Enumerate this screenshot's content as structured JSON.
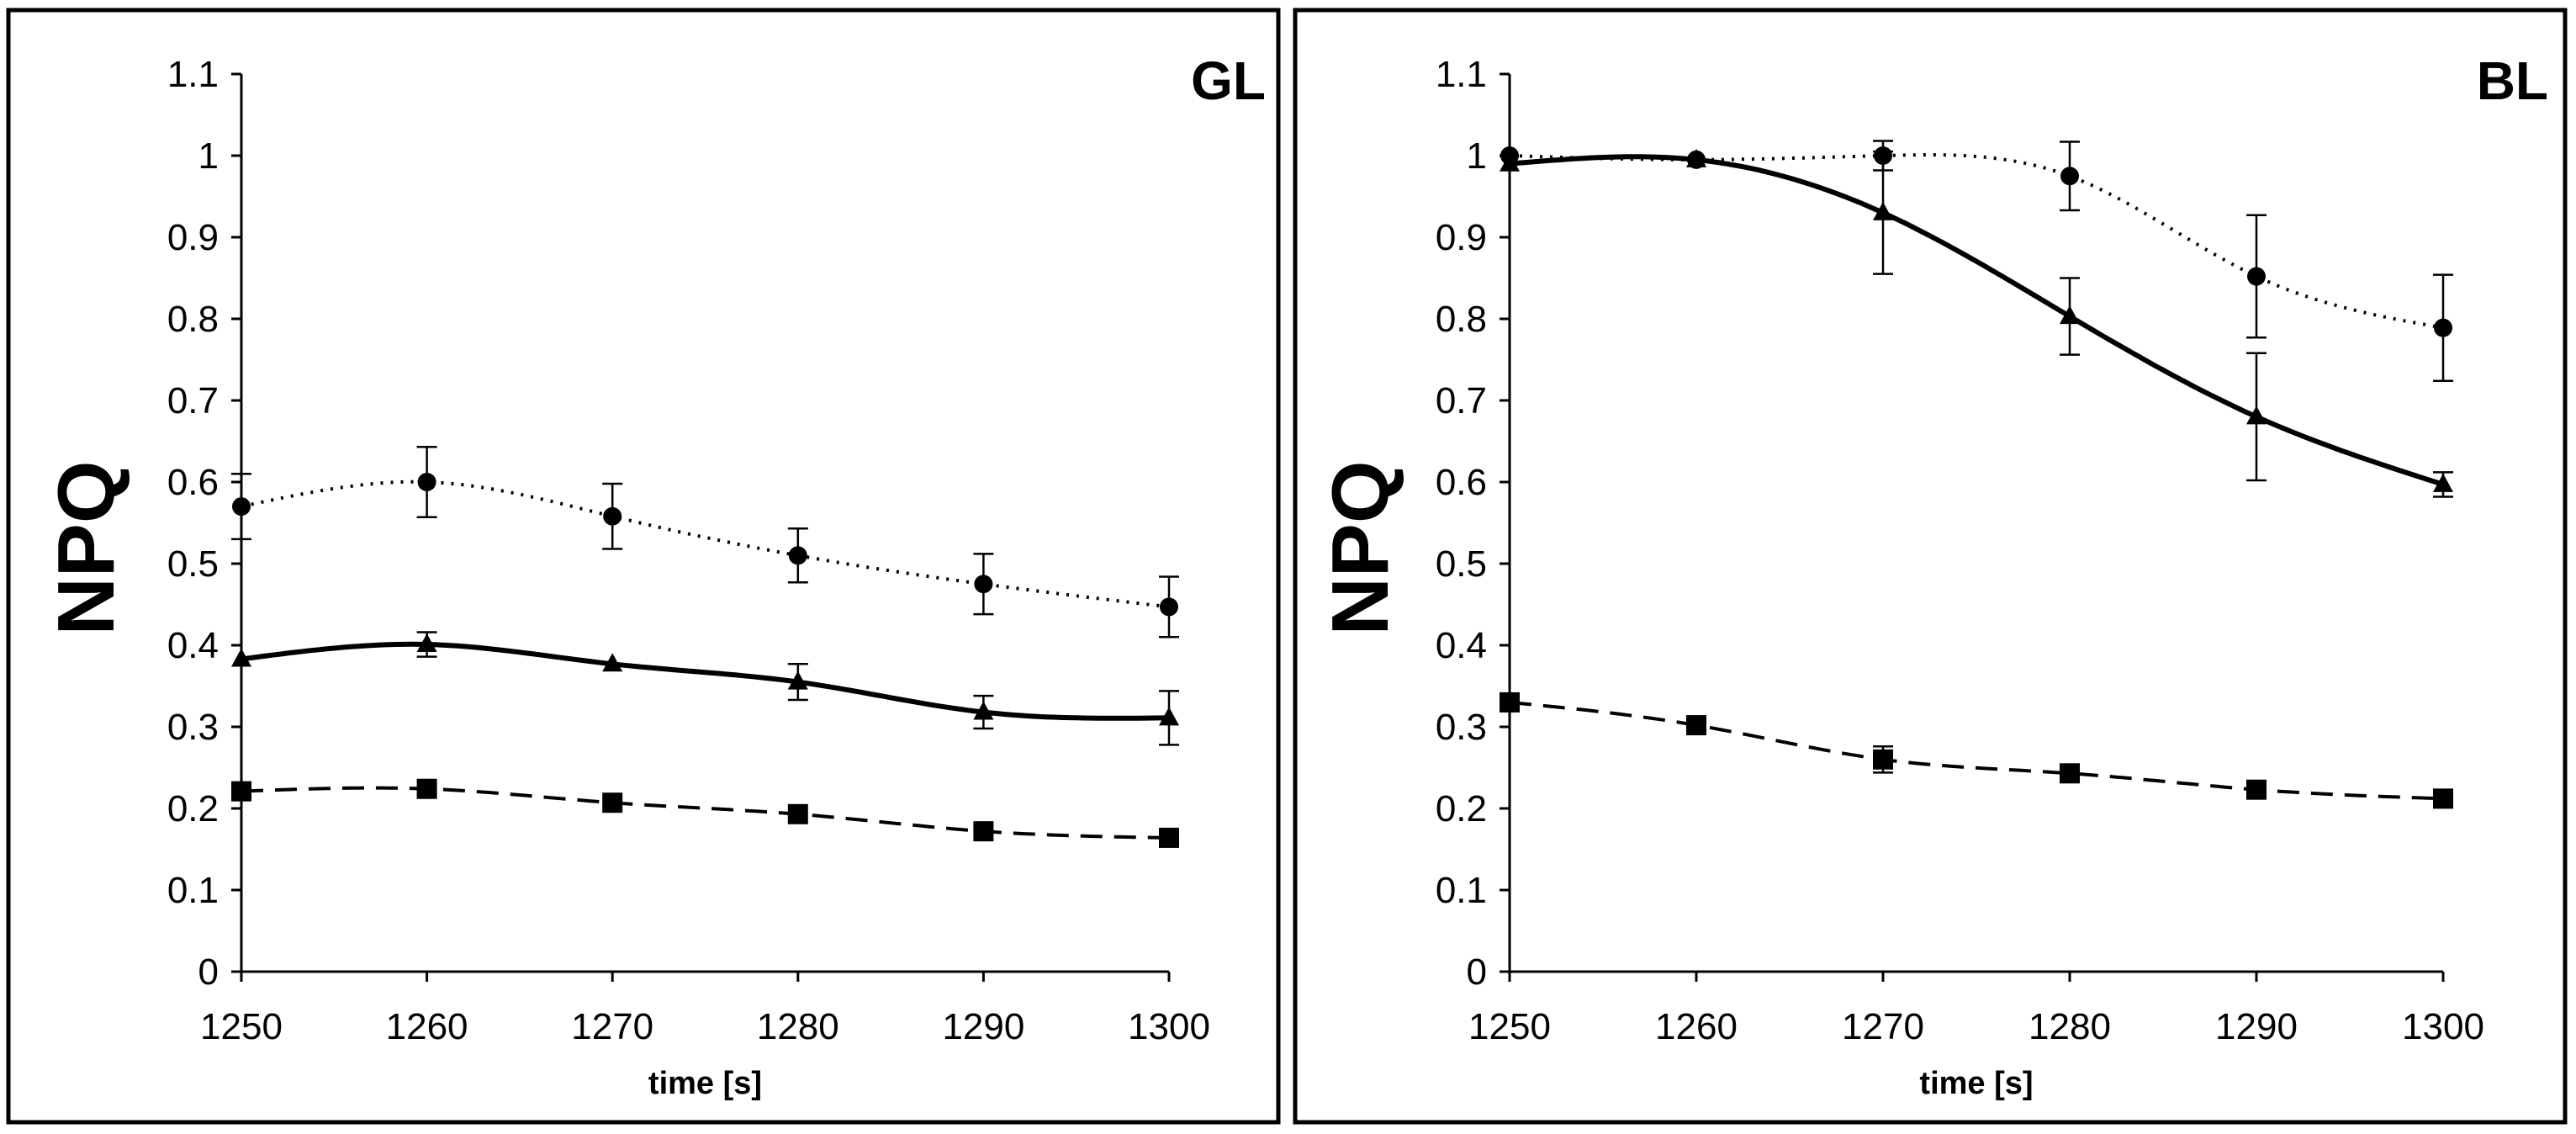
{
  "chart_data": [
    {
      "type": "scatter",
      "panel_label": "GL",
      "xlabel": "time [s]",
      "ylabel": "NPQ",
      "xlim": [
        1250,
        1300
      ],
      "ylim": [
        0,
        1.1
      ],
      "x_ticks": [
        "1250",
        "1260",
        "1270",
        "1280",
        "1290",
        "1300"
      ],
      "y_ticks": [
        "0",
        "0.1",
        "0.2",
        "0.3",
        "0.4",
        "0.5",
        "0.6",
        "0.7",
        "0.8",
        "0.9",
        "1",
        "1.1"
      ],
      "x": [
        1250,
        1260,
        1270,
        1280,
        1290,
        1300
      ],
      "series": [
        {
          "name": "circle",
          "marker": "circle",
          "line": "dotted",
          "values": [
            0.57,
            0.6,
            0.558,
            0.51,
            0.475,
            0.447
          ],
          "errors": [
            0.04,
            0.043,
            0.04,
            0.033,
            0.037,
            0.037
          ]
        },
        {
          "name": "triangle",
          "marker": "triangle",
          "line": "solid",
          "values": [
            0.383,
            0.401,
            0.377,
            0.355,
            0.318,
            0.311
          ],
          "errors": [
            0.0,
            0.015,
            0.0,
            0.022,
            0.02,
            0.033
          ]
        },
        {
          "name": "square",
          "marker": "square",
          "line": "dashed",
          "values": [
            0.221,
            0.224,
            0.207,
            0.193,
            0.172,
            0.164
          ],
          "errors": [
            0.0,
            0.0,
            0.0,
            0.0,
            0.0,
            0.0
          ]
        }
      ]
    },
    {
      "type": "scatter",
      "panel_label": "BL",
      "xlabel": "time [s]",
      "ylabel": "NPQ",
      "xlim": [
        1250,
        1300
      ],
      "ylim": [
        0,
        1.1
      ],
      "x_ticks": [
        "1250",
        "1260",
        "1270",
        "1280",
        "1290",
        "1300"
      ],
      "y_ticks": [
        "0",
        "0.1",
        "0.2",
        "0.3",
        "0.4",
        "0.5",
        "0.6",
        "0.7",
        "0.8",
        "0.9",
        "1",
        "1.1"
      ],
      "x": [
        1250,
        1260,
        1270,
        1280,
        1290,
        1300
      ],
      "series": [
        {
          "name": "circle",
          "marker": "circle",
          "line": "dotted",
          "values": [
            1.0,
            0.995,
            1.0,
            0.975,
            0.852,
            0.789
          ],
          "errors": [
            0.0,
            0.0,
            0.018,
            0.042,
            0.075,
            0.065
          ]
        },
        {
          "name": "triangle",
          "marker": "triangle",
          "line": "solid",
          "values": [
            0.99,
            0.995,
            0.93,
            0.803,
            0.68,
            0.597
          ],
          "errors": [
            0.0,
            0.0,
            0.075,
            0.047,
            0.078,
            0.015
          ]
        },
        {
          "name": "square",
          "marker": "square",
          "line": "dashed",
          "values": [
            0.33,
            0.302,
            0.26,
            0.243,
            0.223,
            0.212
          ],
          "errors": [
            0.0,
            0.0,
            0.016,
            0.0,
            0.0,
            0.0
          ]
        }
      ]
    }
  ]
}
